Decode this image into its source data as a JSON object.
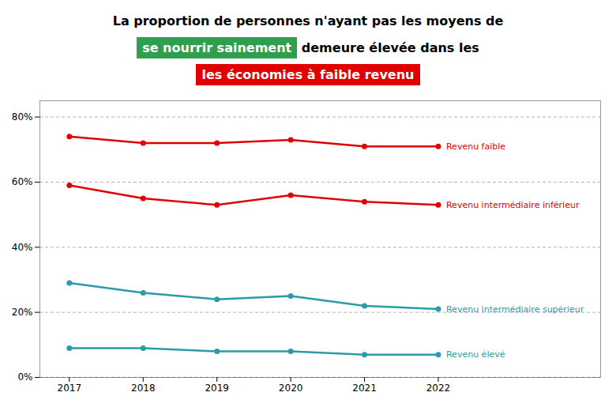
{
  "chart_data": {
    "type": "line",
    "title": [
      [
        {
          "text": "La proportion de personnes n'ayant pas les moyens de"
        }
      ],
      [
        {
          "text": "se nourrir sainement",
          "color": "#2e9e4f"
        },
        {
          "text": " demeure élevée dans les"
        }
      ],
      [
        {
          "text": "les économies à faible revenu",
          "color": "#e00000"
        }
      ]
    ],
    "x": [
      2017,
      2018,
      2019,
      2020,
      2021,
      2022
    ],
    "series": [
      {
        "name": "Revenu faible",
        "color": "#e00000",
        "values": [
          74,
          72,
          72,
          73,
          71,
          71
        ]
      },
      {
        "name": "Revenu intermédiaire inférieur",
        "color": "#e00000",
        "values": [
          59,
          55,
          53,
          56,
          54,
          53
        ]
      },
      {
        "name": "Revenu intermédiaire supérieur",
        "color": "#2b9ba8",
        "values": [
          29,
          26,
          24,
          25,
          22,
          21
        ]
      },
      {
        "name": "Revenu élevé",
        "color": "#2b9ba8",
        "values": [
          9,
          9,
          8,
          8,
          7,
          7
        ]
      }
    ],
    "xlim": [
      2016.6,
      2024.2
    ],
    "xticks": [
      2017,
      2018,
      2019,
      2020,
      2021,
      2022
    ],
    "ylim": [
      0,
      85
    ],
    "yticks": [
      {
        "value": 0,
        "label": "0%"
      },
      {
        "value": 20,
        "label": "20%"
      },
      {
        "value": 40,
        "label": "40%"
      },
      {
        "value": 60,
        "label": "60%"
      },
      {
        "value": 80,
        "label": "80%"
      }
    ],
    "grid": true,
    "marker": "circle"
  }
}
